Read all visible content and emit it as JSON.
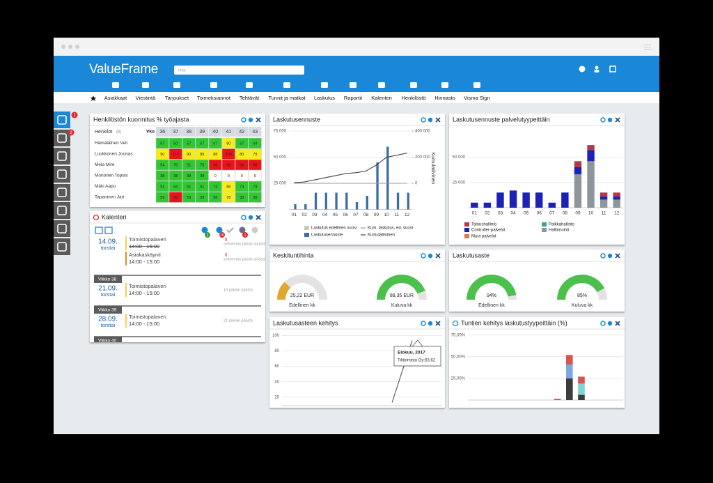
{
  "app": {
    "logo": "ValueFrame",
    "search_placeholder": "Hae",
    "nav": [
      "Asiakkaat",
      "Viestintä",
      "Tarjoukset",
      "Toimeksiannot",
      "Tehtävät",
      "Tunnit ja matkat",
      "Laskutus",
      "Raportit",
      "Kalenteri",
      "Henkilöstö",
      "Hinnasto",
      "Visma Sign"
    ],
    "sidebar_badges": [
      "1",
      "2"
    ]
  },
  "workload": {
    "title": "Henkilöstön kuormitus % työajasta",
    "column_header": "Henkilöt",
    "count": "(6)",
    "week_label": "Vko",
    "weeks": [
      36,
      37,
      38,
      39,
      40,
      41,
      42,
      43
    ],
    "rows": [
      {
        "name": "Hämäläinen Veli",
        "values": [
          57,
          50,
          57,
          57,
          67,
          80,
          67,
          64
        ]
      },
      {
        "name": "Luukkonen Joonas",
        "values": [
          90,
          112,
          90,
          89,
          88,
          103,
          80,
          79
        ]
      },
      {
        "name": "Mela Mire",
        "values": [
          54,
          75,
          51,
          75,
          96,
          91,
          96,
          95
        ]
      },
      {
        "name": "Mononen Topias",
        "values": [
          38,
          38,
          38,
          38,
          0,
          0,
          0,
          0
        ]
      },
      {
        "name": "Mäki Aapo",
        "values": [
          51,
          64,
          51,
          51,
          73,
          86,
          73,
          73
        ]
      },
      {
        "name": "Tapaninen Jari",
        "values": [
          59,
          99,
          59,
          59,
          58,
          78,
          38,
          38
        ]
      }
    ]
  },
  "calendar": {
    "title": "Kalenteri",
    "badges": [
      "1",
      "15",
      "1"
    ],
    "days": [
      {
        "date": "14.09.",
        "weekday": "torstai",
        "events": [
          {
            "title": "Toimistopalaveri",
            "time": "14:00 - 15:00",
            "note": "seitsemän päivän päästä"
          },
          {
            "title": "Asiakaskäynti",
            "time": "14:00 - 15:00",
            "note": "seitsemän päivän päästä"
          }
        ]
      },
      {
        "date": "21.09.",
        "weekday": "torstai",
        "events": [
          {
            "title": "Toimistopalaveri",
            "time": "14:00 - 15:00",
            "note": "14 päivän päästä"
          }
        ]
      },
      {
        "date": "28.09.",
        "weekday": "torstai",
        "events": [
          {
            "title": "Toimistopalaveri",
            "time": "14:00 - 15:00",
            "note": "21 päivän päästä"
          }
        ]
      }
    ],
    "weeks": [
      "Viikko 38",
      "Viikko 39",
      "Viikko 40"
    ]
  },
  "chart_data": [
    {
      "type": "bar",
      "title": "Laskutusennuste",
      "categories": [
        "01",
        "02",
        "03",
        "04",
        "05",
        "06",
        "07",
        "08",
        "09",
        "10",
        "11",
        "12"
      ],
      "ylim": [
        0,
        79000
      ],
      "yticks": [
        {
          "value": 25000,
          "label": "25 000"
        },
        {
          "value": 50000,
          "label": "50 000"
        },
        {
          "value": 75000,
          "label": "75 000"
        }
      ],
      "y2lim": [
        -200000,
        432000
      ],
      "y2ticks": [
        0,
        {
          "value": 200000,
          "label": "200 000"
        },
        {
          "value": 400000,
          "label": "400 000"
        }
      ],
      "y2_label": "Kumulatiivinen",
      "grid": true,
      "series": [
        {
          "name": "Laskutus edellinen vuosi",
          "color": "#c8c8c8",
          "values": [
            0,
            0,
            0,
            0,
            0,
            0,
            0,
            0,
            0,
            0,
            0,
            0
          ]
        },
        {
          "name": "Kum. laskutus, ed. vuosi",
          "color": "#9a9a9a",
          "type": "line",
          "axis": "y2",
          "values": [
            0,
            0,
            0,
            0,
            0,
            0,
            0,
            0,
            0,
            0,
            0,
            0
          ]
        },
        {
          "name": "Laskutusennuste",
          "color": "#3a6ea5",
          "values": [
            5000,
            5000,
            16000,
            16000,
            16000,
            16000,
            7000,
            13000,
            45000,
            60000,
            16000,
            16000
          ]
        },
        {
          "name": "Kumulatiivinen",
          "color": "#444444",
          "type": "line",
          "axis": "y2",
          "values": [
            5000,
            10000,
            26000,
            42000,
            58000,
            74000,
            81000,
            94000,
            139000,
            199000,
            215000,
            231000
          ]
        }
      ]
    },
    {
      "type": "stacked-bar",
      "title": "Laskutusennuste palvelutyypeittäin",
      "categories": [
        "01",
        "02",
        "03",
        "04",
        "05",
        "06",
        "07",
        "08",
        "09",
        "10",
        "11",
        "12"
      ],
      "ylim": [
        0,
        80000
      ],
      "yticks": [
        {
          "value": 25000,
          "label": "25 000"
        },
        {
          "value": 50000,
          "label": "50 000"
        }
      ],
      "grid": true,
      "series": [
        {
          "name": "Taloushallinto",
          "color": "#b23a48",
          "values": [
            0,
            0,
            0,
            0,
            0,
            0,
            0,
            0,
            6000,
            5000,
            4000,
            4000
          ]
        },
        {
          "name": "Palkkahallinto",
          "color": "#3aa39a",
          "values": [
            0,
            0,
            0,
            0,
            0,
            0,
            0,
            0,
            0,
            0,
            0,
            0
          ]
        },
        {
          "name": "Controller-palvelut",
          "color": "#1c22b5",
          "values": [
            5000,
            5000,
            15000,
            17000,
            15000,
            15000,
            5000,
            15000,
            7000,
            11000,
            3000,
            3000
          ]
        },
        {
          "name": "Hallinnointi",
          "color": "#8e959c",
          "values": [
            0,
            0,
            0,
            0,
            0,
            0,
            0,
            0,
            33000,
            46000,
            8000,
            8000
          ]
        },
        {
          "name": "Muut palvelut",
          "color": "#e07a3c",
          "values": [
            0,
            0,
            0,
            0,
            0,
            0,
            0,
            0,
            0,
            0,
            0,
            0
          ]
        }
      ]
    },
    {
      "type": "gauge",
      "title": "Keskituntihinta",
      "categories": [
        "Edellinen kk",
        "Kuluva kk"
      ],
      "values": [
        25.22,
        88.35
      ],
      "value_labels": [
        "25,22 EUR",
        "88,35 EUR"
      ],
      "colors": [
        "#e0a82e",
        "#4cc04c"
      ]
    },
    {
      "type": "gauge",
      "title": "Laskutusaste",
      "categories": [
        "Edellinen kk",
        "Kuluva kk"
      ],
      "values": [
        94,
        85
      ],
      "value_labels": [
        "94%",
        "85%"
      ],
      "colors": [
        "#4cc04c",
        "#4cc04c"
      ]
    },
    {
      "type": "line",
      "title": "Laskutusasteen kehitys",
      "categories": [
        null,
        null,
        null,
        null,
        null,
        null,
        null,
        null
      ],
      "values": [
        null,
        null,
        null,
        null,
        null,
        13,
        93.62,
        null
      ],
      "color": "#555555",
      "ylim": [
        9,
        104
      ],
      "yticks": [
        20,
        40,
        60,
        80,
        100
      ],
      "grid": true,
      "tooltip": {
        "title": "Elokuu, 2017",
        "text": "Tilitoimisto Oy:93,62"
      }
    },
    {
      "type": "stacked-bar",
      "title": "Tuntien kehitys laskutustyypeittäin (%)",
      "categories": [
        null,
        null,
        null,
        null,
        null,
        null,
        null,
        null,
        null,
        null,
        null,
        null,
        null
      ],
      "ylim": [
        0,
        78
      ],
      "yticks": [
        {
          "value": 25,
          "label": "25,00%"
        },
        {
          "value": 50,
          "label": "50,00%"
        },
        {
          "value": 75,
          "label": "75,00%"
        }
      ],
      "grid": true,
      "series": [
        {
          "color": "#d9534f",
          "values": [
            null,
            null,
            null,
            null,
            null,
            null,
            null,
            1.5,
            11,
            8,
            null,
            null,
            null
          ]
        },
        {
          "color": "#7fd6d0",
          "values": [
            null,
            null,
            null,
            null,
            null,
            null,
            null,
            null,
            null,
            13,
            null,
            null,
            null
          ]
        },
        {
          "color": "#7fa8e0",
          "values": [
            null,
            null,
            null,
            null,
            null,
            null,
            null,
            null,
            16,
            null,
            null,
            null,
            null
          ]
        },
        {
          "color": "#3c3c3c",
          "values": [
            null,
            null,
            null,
            null,
            null,
            null,
            null,
            null,
            25,
            6,
            null,
            null,
            null
          ]
        }
      ]
    }
  ]
}
